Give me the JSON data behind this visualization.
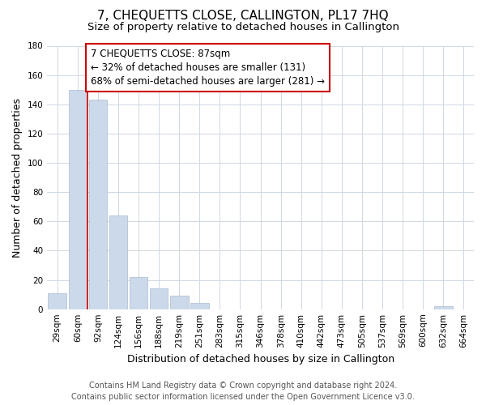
{
  "title": "7, CHEQUETTS CLOSE, CALLINGTON, PL17 7HQ",
  "subtitle": "Size of property relative to detached houses in Callington",
  "xlabel": "Distribution of detached houses by size in Callington",
  "ylabel": "Number of detached properties",
  "categories": [
    "29sqm",
    "60sqm",
    "92sqm",
    "124sqm",
    "156sqm",
    "188sqm",
    "219sqm",
    "251sqm",
    "283sqm",
    "315sqm",
    "346sqm",
    "378sqm",
    "410sqm",
    "442sqm",
    "473sqm",
    "505sqm",
    "537sqm",
    "569sqm",
    "600sqm",
    "632sqm",
    "664sqm"
  ],
  "values": [
    11,
    150,
    143,
    64,
    22,
    14,
    9,
    4,
    0,
    0,
    0,
    0,
    0,
    0,
    0,
    0,
    0,
    0,
    0,
    2,
    0
  ],
  "bar_color": "#ccd9ea",
  "bar_edge_color": "#a8bdd4",
  "highlight_line_color": "#cc0000",
  "annotation_box_edge": "#cc0000",
  "annotation_box_color": "#ffffff",
  "annotation_title": "7 CHEQUETTS CLOSE: 87sqm",
  "annotation_line1": "← 32% of detached houses are smaller (131)",
  "annotation_line2": "68% of semi-detached houses are larger (281) →",
  "ylim": [
    0,
    180
  ],
  "yticks": [
    0,
    20,
    40,
    60,
    80,
    100,
    120,
    140,
    160,
    180
  ],
  "footer_line1": "Contains HM Land Registry data © Crown copyright and database right 2024.",
  "footer_line2": "Contains public sector information licensed under the Open Government Licence v3.0.",
  "bg_color": "#ffffff",
  "grid_color": "#d0d8e4",
  "title_fontsize": 11,
  "subtitle_fontsize": 9.5,
  "axis_label_fontsize": 9,
  "tick_fontsize": 7.5,
  "annotation_fontsize": 8.5,
  "footer_fontsize": 7
}
